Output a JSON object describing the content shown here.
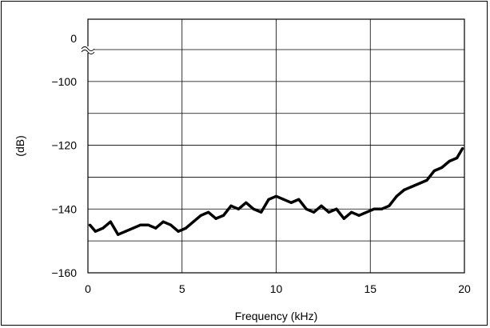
{
  "chart_data": {
    "type": "line",
    "title": "",
    "xlabel": "Frequency (kHz)",
    "ylabel": "(dB)",
    "xlim": [
      0,
      20
    ],
    "ylim": [
      -160,
      0
    ],
    "axis_break": {
      "from": -10,
      "to": -90
    },
    "grid": true,
    "x_ticks": [
      {
        "value": 0,
        "label": "0"
      },
      {
        "value": 5,
        "label": "5"
      },
      {
        "value": 10,
        "label": "10"
      },
      {
        "value": 15,
        "label": "15"
      },
      {
        "value": 20,
        "label": "20"
      }
    ],
    "y_ticks": [
      {
        "value": 0,
        "label": "0"
      },
      {
        "value": -100,
        "label": "−100"
      },
      {
        "value": -120,
        "label": "−120"
      },
      {
        "value": -140,
        "label": "−140"
      },
      {
        "value": -160,
        "label": "−160"
      }
    ],
    "series": [
      {
        "color": "#000000",
        "x": [
          0.1,
          0.4,
          0.8,
          1.2,
          1.6,
          2.0,
          2.4,
          2.8,
          3.2,
          3.6,
          4.0,
          4.4,
          4.8,
          5.2,
          5.6,
          6.0,
          6.4,
          6.8,
          7.2,
          7.6,
          8.0,
          8.4,
          8.8,
          9.2,
          9.6,
          10.0,
          10.4,
          10.8,
          11.2,
          11.6,
          12.0,
          12.4,
          12.8,
          13.2,
          13.6,
          14.0,
          14.4,
          14.8,
          15.2,
          15.6,
          16.0,
          16.4,
          16.8,
          17.2,
          17.6,
          18.0,
          18.4,
          18.8,
          19.2,
          19.6,
          19.9
        ],
        "y": [
          -145,
          -147,
          -146,
          -144,
          -148,
          -147,
          -146,
          -145,
          -145,
          -146,
          -144,
          -145,
          -147,
          -146,
          -144,
          -142,
          -141,
          -143,
          -142,
          -139,
          -140,
          -138,
          -140,
          -141,
          -137,
          -136,
          -137,
          -138,
          -137,
          -140,
          -141,
          -139,
          -141,
          -140,
          -143,
          -141,
          -142,
          -141,
          -140,
          -140,
          -139,
          -136,
          -134,
          -133,
          -132,
          -131,
          -128,
          -127,
          -125,
          -124,
          -121
        ]
      }
    ]
  }
}
